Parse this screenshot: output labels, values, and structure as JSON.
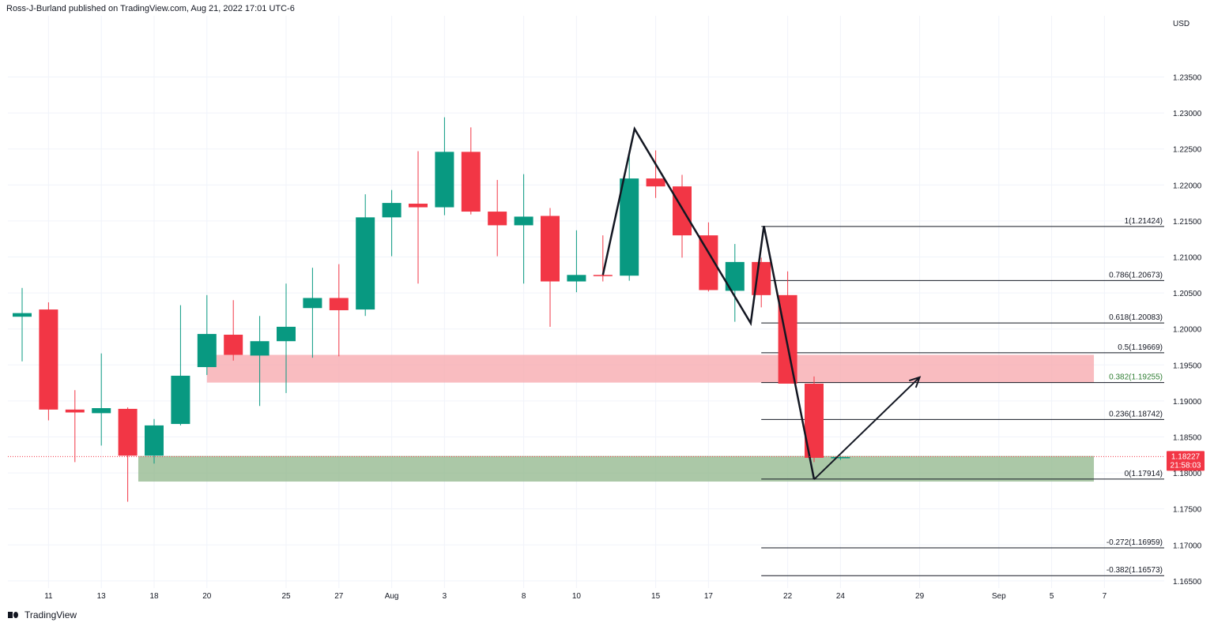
{
  "header": {
    "publish_line": "Ross-J-Burland published on TradingView.com, Aug 21, 2022 17:01 UTC-6"
  },
  "footer": {
    "brand": "TradingView"
  },
  "chart_data": {
    "type": "candlestick",
    "currency": "USD",
    "y_axis_ticks": [
      "1.23500",
      "1.23000",
      "1.22500",
      "1.22000",
      "1.21500",
      "1.21000",
      "1.20500",
      "1.20000",
      "1.19500",
      "1.19000",
      "1.18500",
      "1.18000",
      "1.17500",
      "1.17000",
      "1.16500"
    ],
    "ylim": [
      1.164,
      1.2435
    ],
    "x_axis_ticks": [
      {
        "label": "11",
        "slot": 1
      },
      {
        "label": "13",
        "slot": 3
      },
      {
        "label": "18",
        "slot": 5
      },
      {
        "label": "20",
        "slot": 7
      },
      {
        "label": "25",
        "slot": 10
      },
      {
        "label": "27",
        "slot": 12
      },
      {
        "label": "Aug",
        "slot": 14
      },
      {
        "label": "3",
        "slot": 16
      },
      {
        "label": "8",
        "slot": 19
      },
      {
        "label": "10",
        "slot": 21
      },
      {
        "label": "15",
        "slot": 24
      },
      {
        "label": "17",
        "slot": 26
      },
      {
        "label": "22",
        "slot": 29
      },
      {
        "label": "24",
        "slot": 31
      },
      {
        "label": "29",
        "slot": 34
      },
      {
        "label": "Sep",
        "slot": 37
      },
      {
        "label": "5",
        "slot": 39
      },
      {
        "label": "7",
        "slot": 41
      }
    ],
    "candles": [
      {
        "slot": 0,
        "o": 1.2017,
        "h": 1.2057,
        "l": 1.1955,
        "c": 1.2022
      },
      {
        "slot": 1,
        "o": 1.2027,
        "h": 1.2037,
        "l": 1.1873,
        "c": 1.1888
      },
      {
        "slot": 2,
        "o": 1.1888,
        "h": 1.1915,
        "l": 1.1815,
        "c": 1.1884
      },
      {
        "slot": 3,
        "o": 1.1883,
        "h": 1.1966,
        "l": 1.1838,
        "c": 1.189
      },
      {
        "slot": 4,
        "o": 1.1889,
        "h": 1.1891,
        "l": 1.176,
        "c": 1.1824
      },
      {
        "slot": 5,
        "o": 1.1824,
        "h": 1.1875,
        "l": 1.1813,
        "c": 1.1866
      },
      {
        "slot": 6,
        "o": 1.1868,
        "h": 1.2033,
        "l": 1.1866,
        "c": 1.1935
      },
      {
        "slot": 7,
        "o": 1.1947,
        "h": 1.2047,
        "l": 1.1936,
        "c": 1.1993
      },
      {
        "slot": 8,
        "o": 1.1992,
        "h": 1.204,
        "l": 1.1956,
        "c": 1.1964
      },
      {
        "slot": 9,
        "o": 1.1963,
        "h": 1.2018,
        "l": 1.1893,
        "c": 1.1983
      },
      {
        "slot": 10,
        "o": 1.1983,
        "h": 1.2063,
        "l": 1.1911,
        "c": 1.2003
      },
      {
        "slot": 11,
        "o": 1.2029,
        "h": 1.2085,
        "l": 1.196,
        "c": 1.2043
      },
      {
        "slot": 12,
        "o": 1.2043,
        "h": 1.209,
        "l": 1.1962,
        "c": 1.2026
      },
      {
        "slot": 13,
        "o": 1.2027,
        "h": 1.2187,
        "l": 1.2018,
        "c": 1.2155
      },
      {
        "slot": 14,
        "o": 1.2155,
        "h": 1.2193,
        "l": 1.2101,
        "c": 1.2175
      },
      {
        "slot": 15,
        "o": 1.2174,
        "h": 1.2247,
        "l": 1.2063,
        "c": 1.2169
      },
      {
        "slot": 16,
        "o": 1.2169,
        "h": 1.2294,
        "l": 1.2158,
        "c": 1.2246
      },
      {
        "slot": 17,
        "o": 1.2246,
        "h": 1.228,
        "l": 1.2159,
        "c": 1.2163
      },
      {
        "slot": 18,
        "o": 1.2163,
        "h": 1.2207,
        "l": 1.2101,
        "c": 1.2144
      },
      {
        "slot": 19,
        "o": 1.2144,
        "h": 1.2215,
        "l": 1.2063,
        "c": 1.2156
      },
      {
        "slot": 20,
        "o": 1.2157,
        "h": 1.2168,
        "l": 1.2003,
        "c": 1.2066
      },
      {
        "slot": 21,
        "o": 1.2066,
        "h": 1.2137,
        "l": 1.2051,
        "c": 1.2075
      },
      {
        "slot": 22,
        "o": 1.2075,
        "h": 1.213,
        "l": 1.2066,
        "c": 1.2074
      },
      {
        "slot": 23,
        "o": 1.2074,
        "h": 1.2244,
        "l": 1.2067,
        "c": 1.2209
      },
      {
        "slot": 24,
        "o": 1.2209,
        "h": 1.2248,
        "l": 1.2182,
        "c": 1.2198
      },
      {
        "slot": 25,
        "o": 1.2198,
        "h": 1.2214,
        "l": 1.2099,
        "c": 1.213
      },
      {
        "slot": 26,
        "o": 1.213,
        "h": 1.2148,
        "l": 1.2052,
        "c": 1.2054
      },
      {
        "slot": 27,
        "o": 1.2053,
        "h": 1.2118,
        "l": 1.201,
        "c": 1.2093
      },
      {
        "slot": 28,
        "o": 1.2093,
        "h": 1.2099,
        "l": 1.203,
        "c": 1.2047
      },
      {
        "slot": 29,
        "o": 1.2047,
        "h": 1.208,
        "l": 1.1925,
        "c": 1.1924
      },
      {
        "slot": 30,
        "o": 1.1924,
        "h": 1.1934,
        "l": 1.1815,
        "c": 1.1821
      },
      {
        "slot": 31,
        "o": 1.1822,
        "h": 1.1824,
        "l": 1.1818,
        "c": 1.1822
      }
    ],
    "zones": [
      {
        "name": "resistance",
        "color": "#f7a5ab",
        "y_top": 1.1964,
        "y_bottom": 1.19255,
        "slot_start": 7.0,
        "slot_end": 40.6
      },
      {
        "name": "support",
        "color": "#8fb68a",
        "y_top": 1.18235,
        "y_bottom": 1.1788,
        "slot_start": 4.4,
        "slot_end": 40.6
      }
    ],
    "fib_levels": [
      {
        "label": "1(1.21424)",
        "value": 1.21424,
        "color": "#131722"
      },
      {
        "label": "0.786(1.20673)",
        "value": 1.20673,
        "color": "#131722"
      },
      {
        "label": "0.618(1.20083)",
        "value": 1.20083,
        "color": "#131722"
      },
      {
        "label": "0.5(1.19669)",
        "value": 1.19669,
        "color": "#131722"
      },
      {
        "label": "0.382(1.19255)",
        "value": 1.19255,
        "color": "#2e7d32"
      },
      {
        "label": "0.236(1.18742)",
        "value": 1.18742,
        "color": "#131722"
      },
      {
        "label": "0(1.17914)",
        "value": 1.17914,
        "color": "#131722"
      },
      {
        "label": "-0.272(1.16959)",
        "value": 1.16959,
        "color": "#131722"
      },
      {
        "label": "-0.382(1.16573)",
        "value": 1.16573,
        "color": "#131722"
      }
    ],
    "fib_slot_start": 28.0,
    "pattern_points": [
      {
        "slot": 22.0,
        "y": 1.2075
      },
      {
        "slot": 23.2,
        "y": 1.2278
      },
      {
        "slot": 27.6,
        "y": 1.2008
      },
      {
        "slot": 28.1,
        "y": 1.2143
      },
      {
        "slot": 30.0,
        "y": 1.1791
      }
    ],
    "projection_arrow": {
      "from": {
        "slot": 30.0,
        "y": 1.1791
      },
      "to": {
        "slot": 34.0,
        "y": 1.1933
      }
    },
    "last_price": {
      "value": "1.18227",
      "countdown": "21:58:03",
      "y": 1.18227,
      "color": "#f23645"
    },
    "colors": {
      "up": "#089981",
      "down": "#f23645",
      "grid": "#f0f3fa"
    }
  }
}
